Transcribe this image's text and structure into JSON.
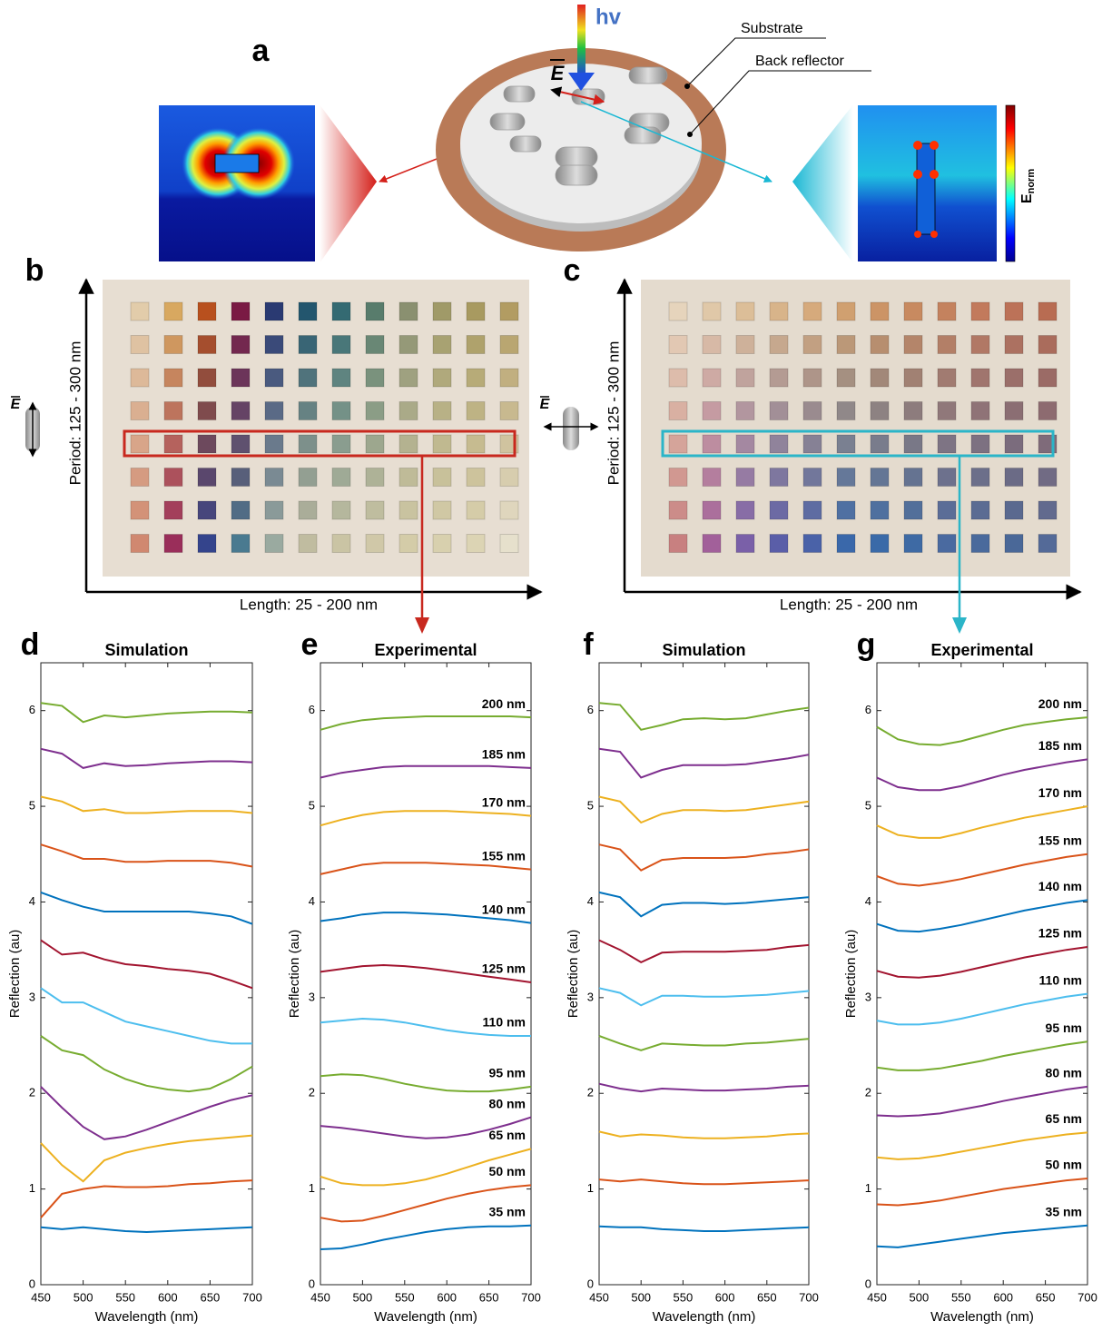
{
  "figure": {
    "panel_a": {
      "label": "a",
      "photon": "hv",
      "field": "E",
      "substrate": "Substrate",
      "back_reflector": "Back reflector",
      "colorbar": {
        "label": "E",
        "sub": "norm"
      }
    },
    "panel_b": {
      "label": "b",
      "field": "E",
      "ylabel": "Period: 125 - 300 nm",
      "xlabel": "Length: 25 - 200 nm"
    },
    "panel_c": {
      "label": "c",
      "field": "E",
      "ylabel": "Period: 125 - 300 nm",
      "xlabel": "Length: 25 - 200 nm"
    }
  },
  "chart_data": [
    {
      "type": "line",
      "label": "d",
      "title": "Simulation",
      "xlabel": "Wavelength (nm)",
      "ylabel": "Reflection (au)",
      "x": [
        450,
        475,
        500,
        525,
        550,
        575,
        600,
        625,
        650,
        675,
        700
      ],
      "xlim": [
        450,
        700
      ],
      "ylim": [
        0,
        6.5
      ],
      "xticks": [
        450,
        500,
        550,
        600,
        650,
        700
      ],
      "yticks": [
        0,
        1,
        2,
        3,
        4,
        5,
        6
      ],
      "series": [
        {
          "color": "#0072bd",
          "values": [
            0.6,
            0.58,
            0.6,
            0.58,
            0.56,
            0.55,
            0.56,
            0.57,
            0.58,
            0.59,
            0.6
          ]
        },
        {
          "color": "#d95319",
          "values": [
            0.7,
            0.95,
            1.0,
            1.03,
            1.02,
            1.02,
            1.03,
            1.05,
            1.06,
            1.08,
            1.09
          ]
        },
        {
          "color": "#edb120",
          "values": [
            1.48,
            1.25,
            1.08,
            1.3,
            1.38,
            1.43,
            1.47,
            1.5,
            1.52,
            1.54,
            1.56
          ]
        },
        {
          "color": "#7e2f8e",
          "values": [
            2.07,
            1.85,
            1.65,
            1.52,
            1.55,
            1.62,
            1.7,
            1.78,
            1.86,
            1.93,
            1.98
          ]
        },
        {
          "color": "#77ac30",
          "values": [
            2.6,
            2.45,
            2.4,
            2.25,
            2.15,
            2.08,
            2.04,
            2.02,
            2.05,
            2.15,
            2.28
          ]
        },
        {
          "color": "#4dbeee",
          "values": [
            3.1,
            2.95,
            2.95,
            2.85,
            2.75,
            2.7,
            2.65,
            2.6,
            2.55,
            2.52,
            2.52
          ]
        },
        {
          "color": "#a2142f",
          "values": [
            3.6,
            3.45,
            3.47,
            3.4,
            3.35,
            3.33,
            3.3,
            3.28,
            3.25,
            3.18,
            3.1
          ]
        },
        {
          "color": "#0072bd",
          "values": [
            4.1,
            4.02,
            3.95,
            3.9,
            3.9,
            3.9,
            3.9,
            3.9,
            3.88,
            3.85,
            3.77
          ]
        },
        {
          "color": "#d95319",
          "values": [
            4.6,
            4.53,
            4.45,
            4.45,
            4.42,
            4.42,
            4.43,
            4.43,
            4.43,
            4.41,
            4.37
          ]
        },
        {
          "color": "#edb120",
          "values": [
            5.1,
            5.05,
            4.95,
            4.97,
            4.93,
            4.93,
            4.94,
            4.95,
            4.95,
            4.95,
            4.93
          ]
        },
        {
          "color": "#7e2f8e",
          "values": [
            5.6,
            5.55,
            5.4,
            5.45,
            5.42,
            5.43,
            5.45,
            5.46,
            5.47,
            5.47,
            5.46
          ]
        },
        {
          "color": "#77ac30",
          "values": [
            6.08,
            6.05,
            5.88,
            5.95,
            5.93,
            5.95,
            5.97,
            5.98,
            5.99,
            5.99,
            5.98
          ]
        }
      ]
    },
    {
      "type": "line",
      "label": "e",
      "title": "Experimental",
      "xlabel": "Wavelength (nm)",
      "ylabel": "Reflection (au)",
      "x": [
        450,
        475,
        500,
        525,
        550,
        575,
        600,
        625,
        650,
        675,
        700
      ],
      "xlim": [
        450,
        700
      ],
      "ylim": [
        0,
        6.5
      ],
      "xticks": [
        450,
        500,
        550,
        600,
        650,
        700
      ],
      "yticks": [
        0,
        1,
        2,
        3,
        4,
        5,
        6
      ],
      "series": [
        {
          "name": "35 nm",
          "color": "#0072bd",
          "values": [
            0.37,
            0.38,
            0.42,
            0.47,
            0.51,
            0.55,
            0.58,
            0.6,
            0.61,
            0.61,
            0.62
          ]
        },
        {
          "name": "50 nm",
          "color": "#d95319",
          "values": [
            0.7,
            0.66,
            0.67,
            0.72,
            0.78,
            0.84,
            0.9,
            0.95,
            0.99,
            1.02,
            1.04
          ]
        },
        {
          "name": "65 nm",
          "color": "#edb120",
          "values": [
            1.13,
            1.06,
            1.04,
            1.04,
            1.06,
            1.1,
            1.16,
            1.23,
            1.3,
            1.36,
            1.42
          ]
        },
        {
          "name": "80 nm",
          "color": "#7e2f8e",
          "values": [
            1.66,
            1.64,
            1.61,
            1.58,
            1.55,
            1.53,
            1.54,
            1.57,
            1.62,
            1.68,
            1.75
          ]
        },
        {
          "name": "95 nm",
          "color": "#77ac30",
          "values": [
            2.18,
            2.2,
            2.19,
            2.15,
            2.1,
            2.06,
            2.03,
            2.02,
            2.02,
            2.04,
            2.07
          ]
        },
        {
          "name": "110 nm",
          "color": "#4dbeee",
          "values": [
            2.74,
            2.76,
            2.78,
            2.77,
            2.74,
            2.7,
            2.66,
            2.63,
            2.61,
            2.6,
            2.6
          ]
        },
        {
          "name": "125 nm",
          "color": "#a2142f",
          "values": [
            3.27,
            3.3,
            3.33,
            3.34,
            3.33,
            3.31,
            3.28,
            3.25,
            3.22,
            3.19,
            3.16
          ]
        },
        {
          "name": "140 nm",
          "color": "#0072bd",
          "values": [
            3.8,
            3.83,
            3.87,
            3.89,
            3.89,
            3.88,
            3.87,
            3.85,
            3.83,
            3.81,
            3.78
          ]
        },
        {
          "name": "155 nm",
          "color": "#d95319",
          "values": [
            4.29,
            4.34,
            4.39,
            4.41,
            4.41,
            4.41,
            4.4,
            4.39,
            4.38,
            4.36,
            4.34
          ]
        },
        {
          "name": "170 nm",
          "color": "#edb120",
          "values": [
            4.8,
            4.86,
            4.91,
            4.94,
            4.95,
            4.95,
            4.95,
            4.94,
            4.93,
            4.92,
            4.9
          ]
        },
        {
          "name": "185 nm",
          "color": "#7e2f8e",
          "values": [
            5.3,
            5.35,
            5.38,
            5.41,
            5.42,
            5.42,
            5.42,
            5.42,
            5.42,
            5.41,
            5.4
          ]
        },
        {
          "name": "200 nm",
          "color": "#77ac30",
          "values": [
            5.8,
            5.86,
            5.9,
            5.92,
            5.93,
            5.94,
            5.94,
            5.94,
            5.94,
            5.94,
            5.93
          ]
        }
      ]
    },
    {
      "type": "line",
      "label": "f",
      "title": "Simulation",
      "xlabel": "Wavelength (nm)",
      "ylabel": "Reflection (au)",
      "x": [
        450,
        475,
        500,
        525,
        550,
        575,
        600,
        625,
        650,
        675,
        700
      ],
      "xlim": [
        450,
        700
      ],
      "ylim": [
        0,
        6.5
      ],
      "xticks": [
        450,
        500,
        550,
        600,
        650,
        700
      ],
      "yticks": [
        0,
        1,
        2,
        3,
        4,
        5,
        6
      ],
      "series": [
        {
          "color": "#0072bd",
          "values": [
            0.61,
            0.6,
            0.6,
            0.58,
            0.57,
            0.56,
            0.56,
            0.57,
            0.58,
            0.59,
            0.6
          ]
        },
        {
          "color": "#d95319",
          "values": [
            1.1,
            1.08,
            1.1,
            1.08,
            1.06,
            1.05,
            1.05,
            1.06,
            1.07,
            1.08,
            1.09
          ]
        },
        {
          "color": "#edb120",
          "values": [
            1.6,
            1.55,
            1.57,
            1.56,
            1.54,
            1.53,
            1.53,
            1.54,
            1.55,
            1.57,
            1.58
          ]
        },
        {
          "color": "#7e2f8e",
          "values": [
            2.1,
            2.05,
            2.02,
            2.05,
            2.04,
            2.03,
            2.03,
            2.04,
            2.05,
            2.07,
            2.08
          ]
        },
        {
          "color": "#77ac30",
          "values": [
            2.6,
            2.52,
            2.45,
            2.52,
            2.51,
            2.5,
            2.5,
            2.52,
            2.53,
            2.55,
            2.57
          ]
        },
        {
          "color": "#4dbeee",
          "values": [
            3.1,
            3.05,
            2.92,
            3.02,
            3.02,
            3.01,
            3.01,
            3.02,
            3.03,
            3.05,
            3.07
          ]
        },
        {
          "color": "#a2142f",
          "values": [
            3.6,
            3.5,
            3.37,
            3.47,
            3.48,
            3.48,
            3.48,
            3.49,
            3.5,
            3.53,
            3.55
          ]
        },
        {
          "color": "#0072bd",
          "values": [
            4.1,
            4.05,
            3.85,
            3.97,
            3.99,
            3.99,
            3.98,
            3.99,
            4.01,
            4.03,
            4.05
          ]
        },
        {
          "color": "#d95319",
          "values": [
            4.6,
            4.55,
            4.33,
            4.44,
            4.46,
            4.46,
            4.46,
            4.47,
            4.5,
            4.52,
            4.55
          ]
        },
        {
          "color": "#edb120",
          "values": [
            5.1,
            5.05,
            4.83,
            4.92,
            4.96,
            4.96,
            4.95,
            4.96,
            4.99,
            5.02,
            5.05
          ]
        },
        {
          "color": "#7e2f8e",
          "values": [
            5.6,
            5.57,
            5.3,
            5.38,
            5.43,
            5.43,
            5.43,
            5.44,
            5.47,
            5.5,
            5.54
          ]
        },
        {
          "color": "#77ac30",
          "values": [
            6.08,
            6.06,
            5.8,
            5.85,
            5.91,
            5.92,
            5.91,
            5.92,
            5.96,
            6.0,
            6.03
          ]
        }
      ]
    },
    {
      "type": "line",
      "label": "g",
      "title": "Experimental",
      "xlabel": "Wavelength (nm)",
      "ylabel": "Reflection (au)",
      "x": [
        450,
        475,
        500,
        525,
        550,
        575,
        600,
        625,
        650,
        675,
        700
      ],
      "xlim": [
        450,
        700
      ],
      "ylim": [
        0,
        6.5
      ],
      "xticks": [
        450,
        500,
        550,
        600,
        650,
        700
      ],
      "yticks": [
        0,
        1,
        2,
        3,
        4,
        5,
        6
      ],
      "series": [
        {
          "name": "35 nm",
          "color": "#0072bd",
          "values": [
            0.4,
            0.39,
            0.42,
            0.45,
            0.48,
            0.51,
            0.54,
            0.56,
            0.58,
            0.6,
            0.62
          ]
        },
        {
          "name": "50 nm",
          "color": "#d95319",
          "values": [
            0.84,
            0.83,
            0.85,
            0.88,
            0.92,
            0.96,
            1.0,
            1.03,
            1.06,
            1.09,
            1.11
          ]
        },
        {
          "name": "65 nm",
          "color": "#edb120",
          "values": [
            1.33,
            1.31,
            1.32,
            1.35,
            1.39,
            1.43,
            1.47,
            1.51,
            1.54,
            1.57,
            1.59
          ]
        },
        {
          "name": "80 nm",
          "color": "#7e2f8e",
          "values": [
            1.77,
            1.76,
            1.77,
            1.79,
            1.83,
            1.87,
            1.92,
            1.96,
            2.0,
            2.04,
            2.07
          ]
        },
        {
          "name": "95 nm",
          "color": "#77ac30",
          "values": [
            2.27,
            2.24,
            2.24,
            2.26,
            2.3,
            2.34,
            2.39,
            2.43,
            2.47,
            2.51,
            2.54
          ]
        },
        {
          "name": "110 nm",
          "color": "#4dbeee",
          "values": [
            2.76,
            2.72,
            2.72,
            2.74,
            2.78,
            2.83,
            2.88,
            2.93,
            2.97,
            3.01,
            3.04
          ]
        },
        {
          "name": "125 nm",
          "color": "#a2142f",
          "values": [
            3.28,
            3.22,
            3.21,
            3.23,
            3.27,
            3.32,
            3.37,
            3.42,
            3.46,
            3.5,
            3.53
          ]
        },
        {
          "name": "140 nm",
          "color": "#0072bd",
          "values": [
            3.77,
            3.7,
            3.69,
            3.72,
            3.76,
            3.81,
            3.86,
            3.91,
            3.95,
            3.99,
            4.02
          ]
        },
        {
          "name": "155 nm",
          "color": "#d95319",
          "values": [
            4.27,
            4.19,
            4.17,
            4.2,
            4.24,
            4.29,
            4.34,
            4.39,
            4.43,
            4.47,
            4.5
          ]
        },
        {
          "name": "170 nm",
          "color": "#edb120",
          "values": [
            4.8,
            4.7,
            4.67,
            4.67,
            4.72,
            4.78,
            4.83,
            4.88,
            4.92,
            4.96,
            5.0
          ]
        },
        {
          "name": "185 nm",
          "color": "#7e2f8e",
          "values": [
            5.3,
            5.2,
            5.17,
            5.17,
            5.21,
            5.27,
            5.33,
            5.38,
            5.42,
            5.46,
            5.49
          ]
        },
        {
          "name": "200 nm",
          "color": "#77ac30",
          "values": [
            5.83,
            5.7,
            5.65,
            5.64,
            5.68,
            5.74,
            5.8,
            5.85,
            5.88,
            5.91,
            5.93
          ]
        }
      ]
    }
  ]
}
